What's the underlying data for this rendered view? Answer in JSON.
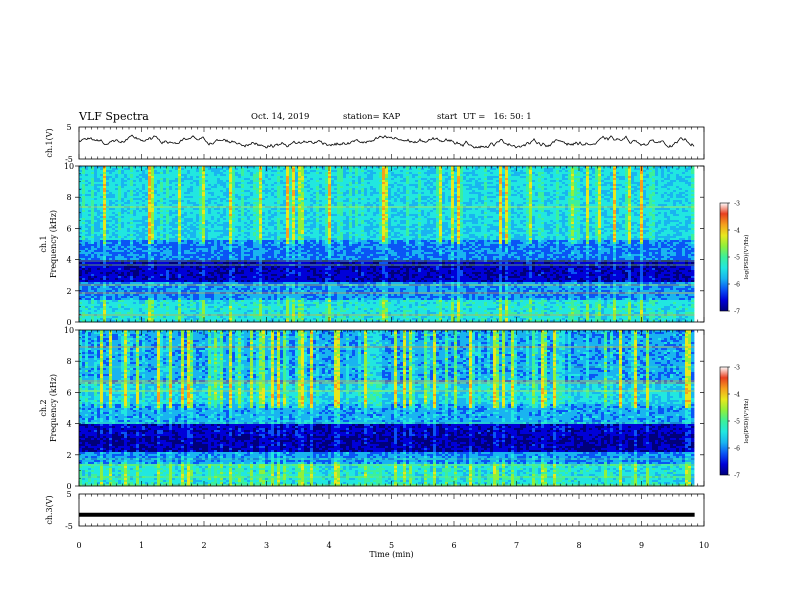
{
  "header": {
    "title": "VLF Spectra",
    "date": "Oct. 14, 2019",
    "station": "station= KAP",
    "start": "start  UT =   16: 50: 1"
  },
  "chart_data": [
    {
      "type": "line",
      "name": "waveform-ch1",
      "ylabel": "ch.1(V)",
      "ylim": [
        -5,
        5
      ],
      "yticks": [
        "5",
        "-5"
      ],
      "xlim": [
        0,
        10
      ],
      "x_end": 9.85,
      "description_of_signal": "noisy waveform fluctuating roughly between -1.5 V and 2.5 V"
    },
    {
      "type": "heatmap",
      "name": "spectrogram-ch1",
      "ylabel": "ch.1\nFrequency (kHz)",
      "ylim": [
        0,
        10
      ],
      "yticks": [
        "0",
        "2",
        "4",
        "6",
        "8",
        "10"
      ],
      "xlim": [
        0,
        10
      ],
      "x_end": 9.85,
      "colorbar": {
        "label": "log(PSD)(V²/Hz)",
        "range": [
          -7,
          -3
        ],
        "ticks": [
          "-3",
          "-4",
          "-5",
          "-6",
          "-7"
        ]
      }
    },
    {
      "type": "heatmap",
      "name": "spectrogram-ch2",
      "ylabel": "ch.2\nFrequency (kHz)",
      "ylim": [
        0,
        10
      ],
      "yticks": [
        "0",
        "2",
        "4",
        "6",
        "8",
        "10"
      ],
      "xlim": [
        0,
        10
      ],
      "x_end": 9.85,
      "colorbar": {
        "label": "log(PSD)(V²/Hz)",
        "range": [
          -7,
          -3
        ],
        "ticks": [
          "-3",
          "-4",
          "-5",
          "-6",
          "-7"
        ]
      }
    },
    {
      "type": "line",
      "name": "waveform-ch3",
      "ylabel": "ch.3(V)",
      "ylim": [
        -5,
        5
      ],
      "yticks": [
        "5",
        "-5"
      ],
      "xlim": [
        0,
        10
      ],
      "x_end": 9.85,
      "constant_value": -1.5
    }
  ],
  "xaxis": {
    "label": "Time  (min)",
    "ticks": [
      "0",
      "1",
      "2",
      "3",
      "4",
      "5",
      "6",
      "7",
      "8",
      "9",
      "10"
    ]
  },
  "colormap": [
    "#00007a",
    "#0000d8",
    "#0a55f5",
    "#19b4f0",
    "#21e7e0",
    "#3cf09a",
    "#8ff03c",
    "#e8e81e",
    "#f5a01e",
    "#e84020",
    "#ffffff"
  ]
}
